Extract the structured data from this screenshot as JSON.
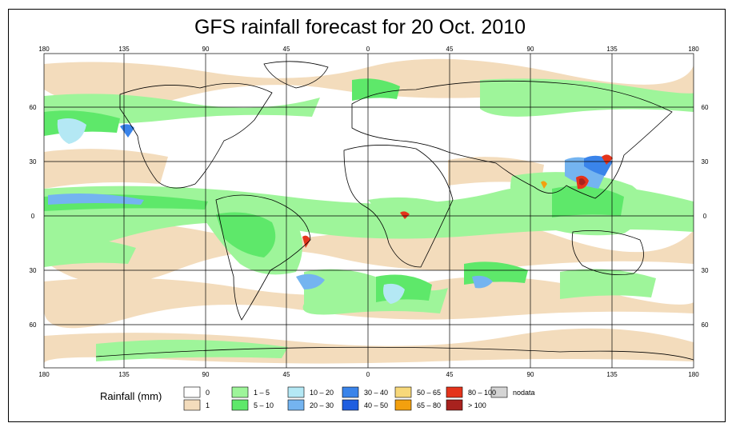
{
  "title": "GFS rainfall forecast for 20 Oct. 2010",
  "lon_ticks": [
    "180",
    "135",
    "90",
    "45",
    "0",
    "45",
    "90",
    "135",
    "180"
  ],
  "lat_ticks": [
    "60",
    "30",
    "0",
    "30",
    "60"
  ],
  "legend": {
    "label": "Rainfall (mm)",
    "items": [
      {
        "label": "0",
        "color": "#ffffff"
      },
      {
        "label": "1",
        "color": "#f3dcbc"
      },
      {
        "label": "1 – 5",
        "color": "#9ef59a"
      },
      {
        "label": "5 – 10",
        "color": "#5ee86a"
      },
      {
        "label": "10 – 20",
        "color": "#b4e8f4"
      },
      {
        "label": "20 – 30",
        "color": "#74b4f0"
      },
      {
        "label": "30 – 40",
        "color": "#3a84ea"
      },
      {
        "label": "40 – 50",
        "color": "#1f5ee0"
      },
      {
        "label": "50 – 65",
        "color": "#f7d87a"
      },
      {
        "label": "65 – 80",
        "color": "#f3a00e"
      },
      {
        "label": "80 – 100",
        "color": "#e4341c"
      },
      {
        "label": "> 100",
        "color": "#a8221e"
      },
      {
        "label": "nodata",
        "color": "#d4d4d4"
      }
    ]
  }
}
